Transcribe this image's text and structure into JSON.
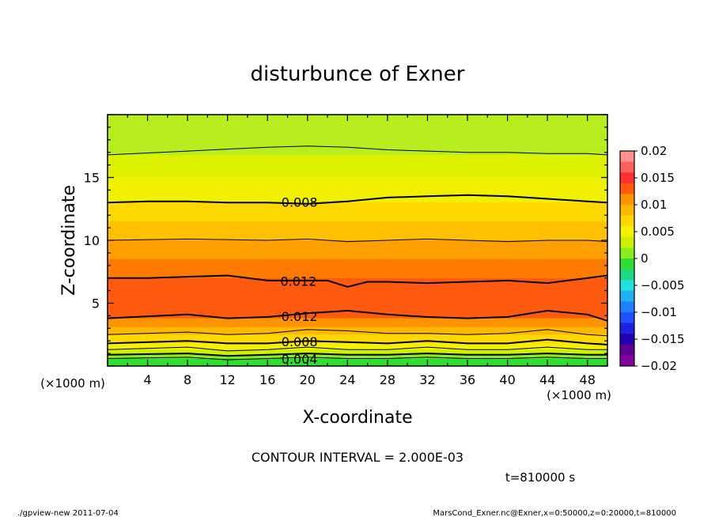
{
  "chart_data": {
    "type": "contour",
    "title": "disturbunce of Exner",
    "xlabel": "X-coordinate",
    "ylabel": "Z-coordinate",
    "x_unit_label": "(×1000 m)",
    "y_unit_label": "(×1000 m)",
    "xlim": [
      0,
      50
    ],
    "ylim": [
      0,
      20
    ],
    "x_ticks": [
      4,
      8,
      12,
      16,
      20,
      24,
      28,
      32,
      36,
      40,
      44,
      48
    ],
    "y_ticks": [
      5,
      10,
      15
    ],
    "contour_interval_text": "CONTOUR INTERVAL = 2.000E-03",
    "time_text": "t=810000 s",
    "contour_labels": [
      {
        "text": "0.008",
        "x": 17.3,
        "z": 13.0
      },
      {
        "text": "0.012",
        "x": 17.2,
        "z": 6.7
      },
      {
        "text": "0.012",
        "x": 17.3,
        "z": 3.9
      },
      {
        "text": "0.008",
        "x": 17.3,
        "z": 1.9
      },
      {
        "text": "0.004",
        "x": 17.3,
        "z": 0.5
      }
    ],
    "contour_lines": [
      {
        "level": 0.002,
        "points": [
          [
            0,
            0.6
          ],
          [
            8,
            0.7
          ],
          [
            12,
            0.5
          ],
          [
            16,
            0.6
          ],
          [
            20,
            0.7
          ],
          [
            24,
            0.6
          ],
          [
            28,
            0.6
          ],
          [
            32,
            0.7
          ],
          [
            36,
            0.6
          ],
          [
            40,
            0.6
          ],
          [
            44,
            0.7
          ],
          [
            48,
            0.6
          ],
          [
            50,
            0.6
          ]
        ],
        "bold": false
      },
      {
        "level": 0.004,
        "points": [
          [
            0,
            0.9
          ],
          [
            8,
            1.0
          ],
          [
            12,
            0.8
          ],
          [
            16,
            0.9
          ],
          [
            20,
            1.0
          ],
          [
            24,
            0.9
          ],
          [
            28,
            0.9
          ],
          [
            32,
            1.0
          ],
          [
            36,
            0.9
          ],
          [
            40,
            0.9
          ],
          [
            44,
            1.0
          ],
          [
            48,
            0.9
          ],
          [
            50,
            0.9
          ]
        ],
        "bold": true
      },
      {
        "level": 0.006,
        "points": [
          [
            0,
            1.3
          ],
          [
            8,
            1.5
          ],
          [
            12,
            1.2
          ],
          [
            16,
            1.3
          ],
          [
            20,
            1.5
          ],
          [
            24,
            1.3
          ],
          [
            28,
            1.3
          ],
          [
            32,
            1.5
          ],
          [
            36,
            1.3
          ],
          [
            40,
            1.3
          ],
          [
            44,
            1.5
          ],
          [
            48,
            1.3
          ],
          [
            50,
            1.3
          ]
        ],
        "bold": false
      },
      {
        "level": 0.008,
        "points": [
          [
            0,
            1.8
          ],
          [
            8,
            2.0
          ],
          [
            12,
            1.8
          ],
          [
            16,
            1.8
          ],
          [
            20,
            2.0
          ],
          [
            24,
            1.9
          ],
          [
            28,
            1.8
          ],
          [
            32,
            2.0
          ],
          [
            36,
            1.8
          ],
          [
            40,
            1.8
          ],
          [
            44,
            2.1
          ],
          [
            48,
            1.8
          ],
          [
            50,
            1.7
          ]
        ],
        "bold": true
      },
      {
        "level": 0.01,
        "points": [
          [
            0,
            2.5
          ],
          [
            8,
            2.7
          ],
          [
            12,
            2.5
          ],
          [
            16,
            2.6
          ],
          [
            20,
            2.9
          ],
          [
            24,
            2.8
          ],
          [
            28,
            2.6
          ],
          [
            32,
            2.6
          ],
          [
            36,
            2.5
          ],
          [
            40,
            2.6
          ],
          [
            44,
            2.9
          ],
          [
            48,
            2.5
          ],
          [
            50,
            2.4
          ]
        ],
        "bold": false
      },
      {
        "level": 0.012,
        "points": [
          [
            0,
            3.8
          ],
          [
            8,
            4.1
          ],
          [
            12,
            3.8
          ],
          [
            16,
            3.9
          ],
          [
            20,
            4.2
          ],
          [
            24,
            4.4
          ],
          [
            28,
            4.1
          ],
          [
            32,
            3.9
          ],
          [
            36,
            3.8
          ],
          [
            40,
            3.9
          ],
          [
            44,
            4.4
          ],
          [
            48,
            4.1
          ],
          [
            50,
            3.6
          ]
        ],
        "bold": true
      },
      {
        "level": 0.012,
        "points": [
          [
            0,
            7.0
          ],
          [
            4,
            7.0
          ],
          [
            8,
            7.1
          ],
          [
            12,
            7.2
          ],
          [
            16,
            6.8
          ],
          [
            20,
            6.8
          ],
          [
            22,
            6.8
          ],
          [
            24,
            6.3
          ],
          [
            26,
            6.7
          ],
          [
            28,
            6.7
          ],
          [
            32,
            6.6
          ],
          [
            36,
            6.7
          ],
          [
            40,
            6.8
          ],
          [
            44,
            6.6
          ],
          [
            48,
            7.0
          ],
          [
            50,
            7.2
          ]
        ],
        "bold": true
      },
      {
        "level": 0.01,
        "points": [
          [
            0,
            10.0
          ],
          [
            8,
            10.1
          ],
          [
            16,
            10.0
          ],
          [
            20,
            10.1
          ],
          [
            24,
            9.9
          ],
          [
            28,
            10.0
          ],
          [
            32,
            10.1
          ],
          [
            36,
            10.0
          ],
          [
            40,
            9.9
          ],
          [
            44,
            10.0
          ],
          [
            48,
            10.0
          ],
          [
            50,
            9.9
          ]
        ],
        "bold": false
      },
      {
        "level": 0.008,
        "points": [
          [
            0,
            13.0
          ],
          [
            4,
            13.1
          ],
          [
            8,
            13.1
          ],
          [
            12,
            13.0
          ],
          [
            16,
            13.0
          ],
          [
            20,
            12.9
          ],
          [
            24,
            13.1
          ],
          [
            28,
            13.4
          ],
          [
            32,
            13.5
          ],
          [
            36,
            13.6
          ],
          [
            40,
            13.5
          ],
          [
            44,
            13.3
          ],
          [
            48,
            13.1
          ],
          [
            50,
            13.0
          ]
        ],
        "bold": true
      },
      {
        "level": 0.006,
        "points": [
          [
            0,
            16.8
          ],
          [
            8,
            17.1
          ],
          [
            16,
            17.4
          ],
          [
            20,
            17.5
          ],
          [
            24,
            17.4
          ],
          [
            28,
            17.2
          ],
          [
            32,
            17.1
          ],
          [
            36,
            17.0
          ],
          [
            40,
            17.0
          ],
          [
            44,
            16.9
          ],
          [
            48,
            16.9
          ],
          [
            50,
            16.8
          ]
        ],
        "bold": false
      }
    ],
    "color_bands": [
      {
        "upper_points": [
          [
            0,
            0.6
          ],
          [
            50,
            0.6
          ]
        ],
        "lower": 0,
        "color": "#30dd30"
      },
      {
        "upper_points": [
          [
            0,
            0.9
          ],
          [
            50,
            0.9
          ]
        ],
        "color": "#88ee20"
      },
      {
        "upper_points": [
          [
            0,
            1.3
          ],
          [
            50,
            1.3
          ]
        ],
        "color": "#ccf000"
      },
      {
        "upper_points": [
          [
            0,
            1.8
          ],
          [
            50,
            1.8
          ]
        ],
        "color": "#f4f000"
      },
      {
        "upper_points": [
          [
            0,
            2.5
          ],
          [
            50,
            2.5
          ]
        ],
        "color": "#ffd800"
      },
      {
        "upper_points": [
          [
            0,
            3.1
          ],
          [
            50,
            3.1
          ]
        ],
        "color": "#ffb800"
      },
      {
        "upper_points": [
          [
            0,
            3.8
          ],
          [
            50,
            3.8
          ]
        ],
        "color": "#ff9400"
      },
      {
        "upper_points": [
          [
            0,
            7.0
          ],
          [
            50,
            7.0
          ]
        ],
        "color": "#ff5a10"
      },
      {
        "upper_points": [
          [
            0,
            8.5
          ],
          [
            50,
            8.5
          ]
        ],
        "color": "#ff7a00"
      },
      {
        "upper_points": [
          [
            0,
            10.0
          ],
          [
            50,
            10.0
          ]
        ],
        "color": "#ffa000"
      },
      {
        "upper_points": [
          [
            0,
            11.5
          ],
          [
            50,
            11.5
          ]
        ],
        "color": "#ffc000"
      },
      {
        "upper_points": [
          [
            0,
            13.0
          ],
          [
            50,
            13.0
          ]
        ],
        "color": "#ffd800"
      },
      {
        "upper_points": [
          [
            0,
            15.0
          ],
          [
            50,
            15.0
          ]
        ],
        "color": "#f0f000"
      },
      {
        "upper_points": [
          [
            0,
            16.8
          ],
          [
            50,
            16.8
          ]
        ],
        "color": "#ddf000"
      },
      {
        "upper_points": [
          [
            0,
            20.0
          ],
          [
            50,
            20.0
          ]
        ],
        "color": "#b8ee20"
      }
    ],
    "colorbar": {
      "ticks": [
        "0.02",
        "0.015",
        "0.01",
        "0.005",
        "0",
        "−0.005",
        "−0.01",
        "−0.015",
        "−0.02"
      ],
      "colors_top_to_bottom": [
        "#ff9090",
        "#ff6060",
        "#ff3030",
        "#ff5a10",
        "#ff9400",
        "#ffb800",
        "#ffd800",
        "#f4f000",
        "#ccf000",
        "#88ee20",
        "#30dd30",
        "#20d880",
        "#20e0e0",
        "#20b0f0",
        "#2080ff",
        "#2050ff",
        "#2020e0",
        "#2000b0",
        "#600090",
        "#8000a0"
      ]
    }
  },
  "footer": {
    "left": "./gpview-new   2011-07-04",
    "right": "MarsCond_Exner.nc@Exner,x=0:50000,z=0:20000,t=810000"
  }
}
